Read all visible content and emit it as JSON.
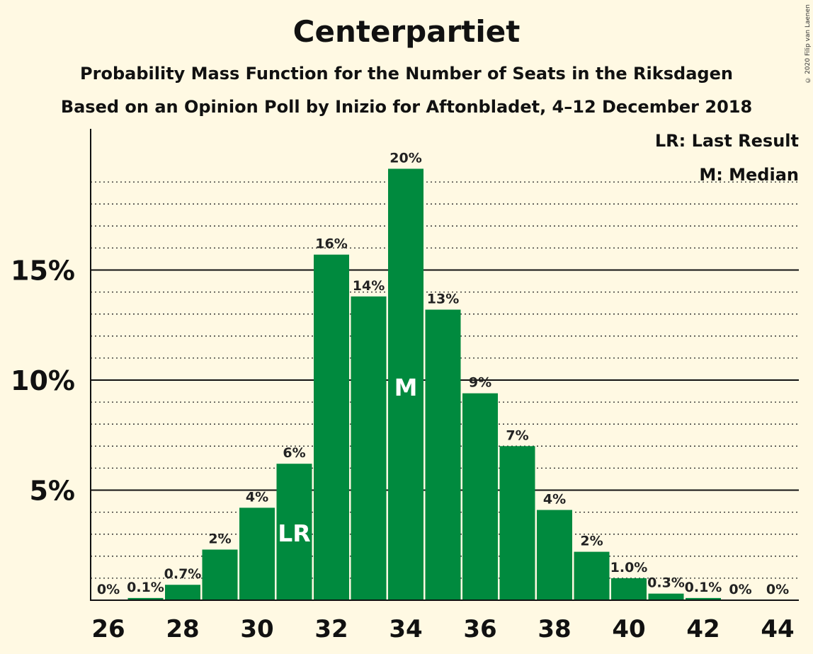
{
  "chart_data": {
    "type": "bar",
    "title": "Centerpartiet",
    "subtitle": "Probability Mass Function for the Number of Seats in the Riksdagen",
    "subtitle2": "Based on an Opinion Poll by Inizio for Aftonbladet, 4–12 December 2018",
    "legend": [
      "LR: Last Result",
      "M: Median"
    ],
    "copyright": "© 2020 Filip van Laenen",
    "categories": [
      26,
      27,
      28,
      29,
      30,
      31,
      32,
      33,
      34,
      35,
      36,
      37,
      38,
      39,
      40,
      41,
      42,
      43,
      44
    ],
    "values": [
      0,
      0.1,
      0.7,
      2.3,
      4.2,
      6.2,
      15.7,
      13.8,
      19.6,
      13.2,
      9.4,
      7.0,
      4.1,
      2.2,
      1.0,
      0.3,
      0.1,
      0,
      0
    ],
    "value_labels": [
      "0%",
      "0.1%",
      "0.7%",
      "2%",
      "4%",
      "6%",
      "16%",
      "14%",
      "20%",
      "13%",
      "9%",
      "7%",
      "4%",
      "2%",
      "1.0%",
      "0.3%",
      "0.1%",
      "0%",
      "0%"
    ],
    "x_ticks": [
      26,
      28,
      30,
      32,
      34,
      36,
      38,
      40,
      42,
      44
    ],
    "y_ticks": [
      5,
      10,
      15
    ],
    "y_tick_labels": [
      "5%",
      "10%",
      "15%"
    ],
    "ylim": [
      0,
      21.5
    ],
    "last_result_seat": 31,
    "last_result_label": "LR",
    "median_seat": 34,
    "median_label": "M",
    "bar_color": "#008A3E",
    "background": "#FFF9E3"
  }
}
